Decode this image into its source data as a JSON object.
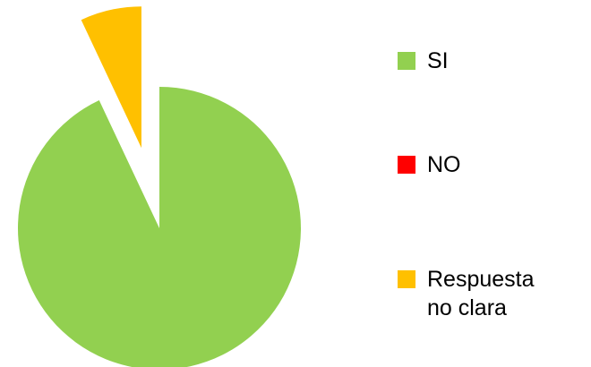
{
  "chart_data": {
    "type": "pie",
    "categories": [
      "SI",
      "NO",
      "Respuesta no clara"
    ],
    "values": [
      93,
      0,
      7
    ],
    "colors": [
      "#92d050",
      "#ff0000",
      "#ffc000"
    ],
    "explode": [
      false,
      false,
      true
    ],
    "legend": "right"
  }
}
